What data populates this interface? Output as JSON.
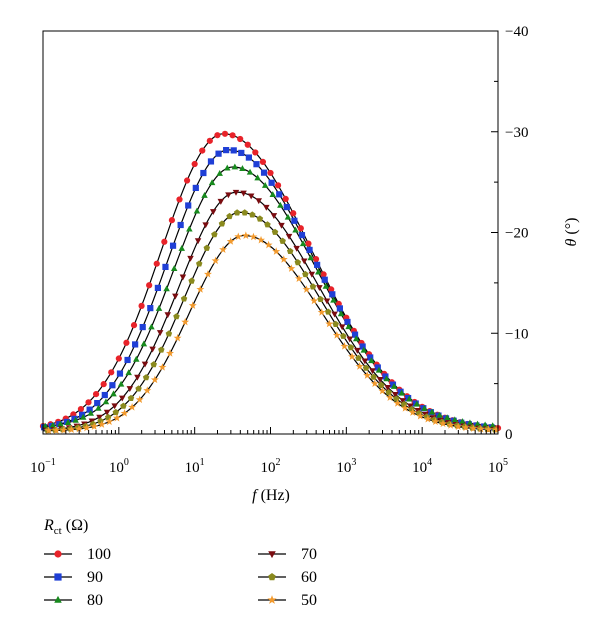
{
  "chart_data": {
    "type": "scatter",
    "x_scale": "log",
    "x_range": [
      0.1,
      100000
    ],
    "x_ticks": [
      {
        "value": 0.1,
        "base": "10",
        "exp": "−1"
      },
      {
        "value": 1,
        "base": "10",
        "exp": "0"
      },
      {
        "value": 10,
        "base": "10",
        "exp": "1"
      },
      {
        "value": 100,
        "base": "10",
        "exp": "2"
      },
      {
        "value": 1000,
        "base": "10",
        "exp": "3"
      },
      {
        "value": 10000,
        "base": "10",
        "exp": "4"
      },
      {
        "value": 100000,
        "base": "10",
        "exp": "5"
      }
    ],
    "xlabel_italic": "f",
    "xlabel_rest": " (Hz)",
    "y_range": [
      0,
      -40
    ],
    "y_ticks": [
      {
        "value": 0,
        "label": "0"
      },
      {
        "value": -10,
        "label": "−10"
      },
      {
        "value": -20,
        "label": "−20"
      },
      {
        "value": -30,
        "label": "−30"
      },
      {
        "value": -40,
        "label": "−40"
      }
    ],
    "ylabel_italic": "θ",
    "ylabel_rest": " (°)",
    "y_axis_side": "right",
    "grid": false,
    "legend": {
      "title_italic": "R",
      "title_sub": "ct",
      "title_rest": "  (Ω)",
      "placement": "below-left, two columns"
    },
    "series": [
      {
        "name": "100",
        "marker": "circle",
        "color": "#e8232a",
        "peak_f": 24,
        "peak_theta": -29.8,
        "width": 0.82,
        "skew": 0.42,
        "floor": 0.35
      },
      {
        "name": "90",
        "marker": "square",
        "color": "#1f3fd6",
        "peak_f": 28,
        "peak_theta": -28.2,
        "width": 0.8,
        "skew": 0.42,
        "floor": 0.4
      },
      {
        "name": "80",
        "marker": "triangle-up",
        "color": "#178a1d",
        "peak_f": 32,
        "peak_theta": -26.5,
        "width": 0.78,
        "skew": 0.42,
        "floor": 0.6
      },
      {
        "name": "70",
        "marker": "triangle-down",
        "color": "#7a0c10",
        "peak_f": 36,
        "peak_theta": -24.0,
        "width": 0.76,
        "skew": 0.42,
        "floor": 0.3
      },
      {
        "name": "60",
        "marker": "pentagon",
        "color": "#8a8a1e",
        "peak_f": 40,
        "peak_theta": -22.0,
        "width": 0.74,
        "skew": 0.42,
        "floor": 0.3
      },
      {
        "name": "50",
        "marker": "star",
        "color": "#f29a2e",
        "peak_f": 45,
        "peak_theta": -19.7,
        "width": 0.72,
        "skew": 0.42,
        "floor": 0.3
      }
    ]
  }
}
